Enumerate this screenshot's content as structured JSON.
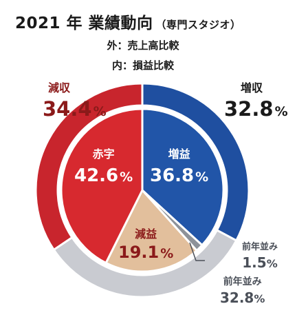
{
  "header": {
    "title": "2021 年 業績動向",
    "title_sub": "（専門スタジオ）",
    "outer_note": "外：売上高比較",
    "inner_note": "内：損益比較"
  },
  "chart_data": [
    {
      "type": "pie",
      "ring": "outer",
      "title": "外：売上高比較",
      "slices": [
        {
          "label": "増収",
          "value": 32.8,
          "color": "#1f4fa0",
          "label_color": "#1a1a1a"
        },
        {
          "label": "前年並み",
          "value": 32.8,
          "color": "#c9cbd1",
          "label_color": "#4a4f58"
        },
        {
          "label": "減収",
          "value": 34.4,
          "color": "#c8252d",
          "label_color": "#8b1a1a"
        }
      ]
    },
    {
      "type": "pie",
      "ring": "inner",
      "title": "内：損益比較",
      "slices": [
        {
          "label": "増益",
          "value": 36.8,
          "color": "#2155a8",
          "label_color": "#ffffff"
        },
        {
          "label": "前年並み",
          "value": 1.5,
          "color": "#8d9299",
          "label_color": "#4a4f58"
        },
        {
          "label": "減益",
          "value": 19.1,
          "color": "#e2bf9c",
          "label_color": "#8b1a1a"
        },
        {
          "label": "赤字",
          "value": 42.6,
          "color": "#d7292f",
          "label_color": "#ffffff"
        }
      ]
    }
  ],
  "colors": {
    "percent_sign": "%"
  }
}
